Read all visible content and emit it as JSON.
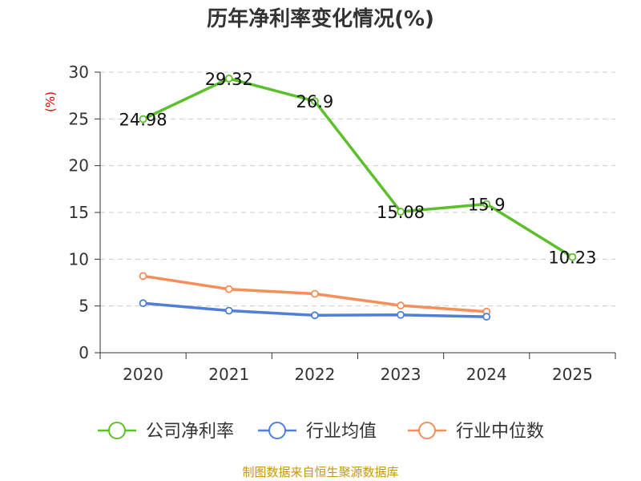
{
  "chart_data": {
    "type": "line",
    "title": "历年净利率变化情况(%)",
    "ylabel": "(%)",
    "xlabel": "",
    "categories": [
      "2020",
      "2021",
      "2022",
      "2023",
      "2024",
      "2025"
    ],
    "ylim": [
      0,
      30
    ],
    "yticks": [
      "0",
      "5",
      "10",
      "15",
      "20",
      "25",
      "30"
    ],
    "grid": true,
    "legend_position": "bottom",
    "series": [
      {
        "name": "公司净利率",
        "color": "#5cc02a",
        "values": [
          24.98,
          29.32,
          26.9,
          15.08,
          15.9,
          10.23
        ],
        "labels": [
          "24.98",
          "29.32",
          "26.9",
          "15.08",
          "15.9",
          "10.23"
        ]
      },
      {
        "name": "行业均值",
        "color": "#4f7fd8",
        "values": [
          5.3,
          4.5,
          4.0,
          4.05,
          3.85,
          null
        ]
      },
      {
        "name": "行业中位数",
        "color": "#f58f5a",
        "values": [
          8.2,
          6.8,
          6.3,
          5.05,
          4.4,
          null
        ]
      }
    ],
    "source": "制图数据来自恒生聚源数据库"
  }
}
